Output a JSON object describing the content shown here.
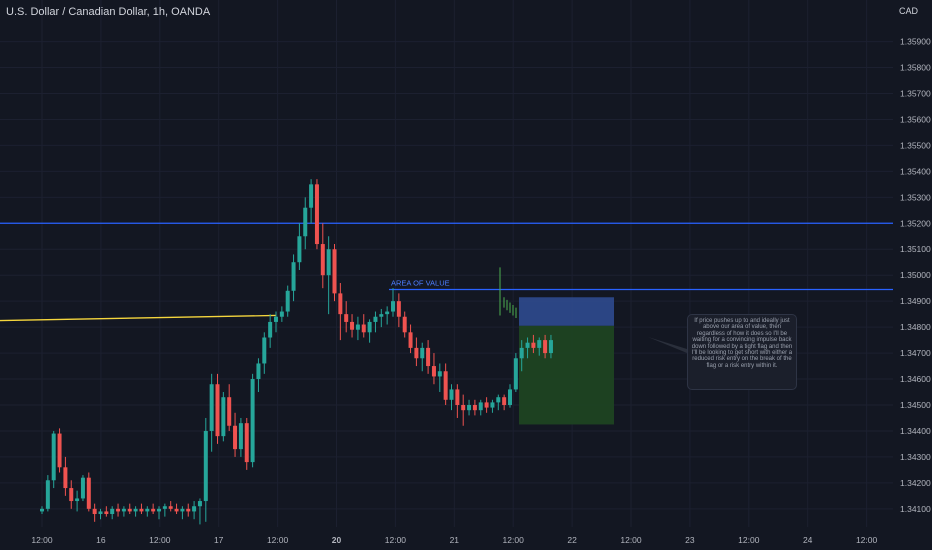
{
  "header": {
    "title": "U.S. Dollar / Canadian Dollar, 1h, OANDA",
    "currency": "CAD"
  },
  "annotation": {
    "area_label": "AREA OF VALUE",
    "note": "If price pushes up to and ideally just above our area of value, then regardless of how it does so I'll be waiting for a convincing impulse back down followed by a tight flag and then I'll be looking to get short with either a reduced risk entry on the break of the flag or a risk entry within it."
  },
  "colors": {
    "background": "#131722",
    "bull": "#26a69a",
    "bear": "#ef5350",
    "level_line": "#2962ff",
    "yellow_line": "#f5d63d",
    "stop_zone": "#2f4a8f",
    "target_zone": "#1d4322",
    "text": "#d1d4dc"
  },
  "chart_data": {
    "type": "candlestick",
    "symbol": "USDCAD",
    "timeframe": "1h",
    "ylim": [
      1.3403,
      1.3596
    ],
    "y_ticks": [
      "1.35900",
      "1.35800",
      "1.35700",
      "1.35600",
      "1.35500",
      "1.35400",
      "1.35300",
      "1.35200",
      "1.35100",
      "1.35000",
      "1.34900",
      "1.34800",
      "1.34700",
      "1.34600",
      "1.34500",
      "1.34400",
      "1.34300",
      "1.34200",
      "1.34100"
    ],
    "x_ticks": [
      "12:00",
      "16",
      "12:00",
      "17",
      "12:00",
      "20",
      "12:00",
      "21",
      "12:00",
      "22",
      "12:00",
      "23",
      "12:00",
      "24",
      "12:00"
    ],
    "horizontal_levels": [
      {
        "price": 1.352,
        "color": "level_line"
      },
      {
        "price": 1.34945,
        "color": "level_line",
        "label": "area_label",
        "starts_at_bar": 60
      }
    ],
    "yellow_line": {
      "from_bar": -1,
      "from_price": 1.34825,
      "to_bar": 40,
      "to_price": 1.34845
    },
    "candles": [
      {
        "o": 1.3409,
        "h": 1.3411,
        "l": 1.3408,
        "c": 1.341
      },
      {
        "o": 1.341,
        "h": 1.3423,
        "l": 1.3409,
        "c": 1.3421
      },
      {
        "o": 1.3421,
        "h": 1.344,
        "l": 1.3418,
        "c": 1.3439
      },
      {
        "o": 1.3439,
        "h": 1.3441,
        "l": 1.3424,
        "c": 1.3426
      },
      {
        "o": 1.3426,
        "h": 1.343,
        "l": 1.3415,
        "c": 1.3418
      },
      {
        "o": 1.3418,
        "h": 1.3421,
        "l": 1.341,
        "c": 1.3413
      },
      {
        "o": 1.3413,
        "h": 1.3417,
        "l": 1.3409,
        "c": 1.3414
      },
      {
        "o": 1.3414,
        "h": 1.3423,
        "l": 1.3413,
        "c": 1.3422
      },
      {
        "o": 1.3422,
        "h": 1.3424,
        "l": 1.3409,
        "c": 1.341
      },
      {
        "o": 1.341,
        "h": 1.3412,
        "l": 1.3405,
        "c": 1.3408
      },
      {
        "o": 1.3408,
        "h": 1.341,
        "l": 1.3406,
        "c": 1.3409
      },
      {
        "o": 1.3409,
        "h": 1.3411,
        "l": 1.3407,
        "c": 1.3408
      },
      {
        "o": 1.3408,
        "h": 1.3411,
        "l": 1.3406,
        "c": 1.341
      },
      {
        "o": 1.341,
        "h": 1.3412,
        "l": 1.3407,
        "c": 1.3409
      },
      {
        "o": 1.3409,
        "h": 1.3411,
        "l": 1.3407,
        "c": 1.341
      },
      {
        "o": 1.341,
        "h": 1.3412,
        "l": 1.3408,
        "c": 1.3409
      },
      {
        "o": 1.3409,
        "h": 1.3411,
        "l": 1.3407,
        "c": 1.341
      },
      {
        "o": 1.341,
        "h": 1.3412,
        "l": 1.3408,
        "c": 1.3409
      },
      {
        "o": 1.3409,
        "h": 1.3411,
        "l": 1.3407,
        "c": 1.341
      },
      {
        "o": 1.341,
        "h": 1.3412,
        "l": 1.3408,
        "c": 1.3409
      },
      {
        "o": 1.3409,
        "h": 1.3411,
        "l": 1.3406,
        "c": 1.341
      },
      {
        "o": 1.341,
        "h": 1.3412,
        "l": 1.3407,
        "c": 1.3411
      },
      {
        "o": 1.3411,
        "h": 1.3413,
        "l": 1.3409,
        "c": 1.341
      },
      {
        "o": 1.341,
        "h": 1.3412,
        "l": 1.3408,
        "c": 1.3409
      },
      {
        "o": 1.3409,
        "h": 1.3411,
        "l": 1.3406,
        "c": 1.341
      },
      {
        "o": 1.341,
        "h": 1.3412,
        "l": 1.3407,
        "c": 1.3409
      },
      {
        "o": 1.3409,
        "h": 1.3413,
        "l": 1.3406,
        "c": 1.3411
      },
      {
        "o": 1.3411,
        "h": 1.3414,
        "l": 1.3404,
        "c": 1.3413
      },
      {
        "o": 1.3413,
        "h": 1.3445,
        "l": 1.3405,
        "c": 1.344
      },
      {
        "o": 1.344,
        "h": 1.3462,
        "l": 1.3432,
        "c": 1.3458
      },
      {
        "o": 1.3458,
        "h": 1.3462,
        "l": 1.3435,
        "c": 1.3438
      },
      {
        "o": 1.3438,
        "h": 1.3455,
        "l": 1.3436,
        "c": 1.3453
      },
      {
        "o": 1.3453,
        "h": 1.3458,
        "l": 1.344,
        "c": 1.3442
      },
      {
        "o": 1.3442,
        "h": 1.3447,
        "l": 1.343,
        "c": 1.3433
      },
      {
        "o": 1.3433,
        "h": 1.3445,
        "l": 1.343,
        "c": 1.3443
      },
      {
        "o": 1.3443,
        "h": 1.3445,
        "l": 1.3425,
        "c": 1.3428
      },
      {
        "o": 1.3428,
        "h": 1.3462,
        "l": 1.3426,
        "c": 1.346
      },
      {
        "o": 1.346,
        "h": 1.3468,
        "l": 1.3455,
        "c": 1.3466
      },
      {
        "o": 1.3466,
        "h": 1.3478,
        "l": 1.3462,
        "c": 1.3476
      },
      {
        "o": 1.3476,
        "h": 1.3485,
        "l": 1.3472,
        "c": 1.3482
      },
      {
        "o": 1.3482,
        "h": 1.3486,
        "l": 1.3478,
        "c": 1.3484
      },
      {
        "o": 1.3484,
        "h": 1.3488,
        "l": 1.3482,
        "c": 1.3486
      },
      {
        "o": 1.3486,
        "h": 1.3496,
        "l": 1.3484,
        "c": 1.3494
      },
      {
        "o": 1.3494,
        "h": 1.3508,
        "l": 1.349,
        "c": 1.3505
      },
      {
        "o": 1.3505,
        "h": 1.352,
        "l": 1.3502,
        "c": 1.3515
      },
      {
        "o": 1.3515,
        "h": 1.353,
        "l": 1.351,
        "c": 1.3526
      },
      {
        "o": 1.3526,
        "h": 1.3537,
        "l": 1.352,
        "c": 1.3535
      },
      {
        "o": 1.3535,
        "h": 1.3537,
        "l": 1.351,
        "c": 1.3512
      },
      {
        "o": 1.3512,
        "h": 1.352,
        "l": 1.3495,
        "c": 1.35
      },
      {
        "o": 1.35,
        "h": 1.3515,
        "l": 1.3485,
        "c": 1.351
      },
      {
        "o": 1.351,
        "h": 1.3512,
        "l": 1.349,
        "c": 1.3493
      },
      {
        "o": 1.3493,
        "h": 1.3497,
        "l": 1.3475,
        "c": 1.3485
      },
      {
        "o": 1.3485,
        "h": 1.349,
        "l": 1.3478,
        "c": 1.3482
      },
      {
        "o": 1.3482,
        "h": 1.3485,
        "l": 1.3476,
        "c": 1.3479
      },
      {
        "o": 1.3479,
        "h": 1.3484,
        "l": 1.3475,
        "c": 1.3481
      },
      {
        "o": 1.3481,
        "h": 1.3485,
        "l": 1.3476,
        "c": 1.3478
      },
      {
        "o": 1.3478,
        "h": 1.3483,
        "l": 1.3474,
        "c": 1.3482
      },
      {
        "o": 1.3482,
        "h": 1.3486,
        "l": 1.3478,
        "c": 1.3484
      },
      {
        "o": 1.3484,
        "h": 1.3487,
        "l": 1.348,
        "c": 1.3485
      },
      {
        "o": 1.3485,
        "h": 1.3488,
        "l": 1.3481,
        "c": 1.3486
      },
      {
        "o": 1.3486,
        "h": 1.3495,
        "l": 1.3484,
        "c": 1.349
      },
      {
        "o": 1.349,
        "h": 1.3493,
        "l": 1.348,
        "c": 1.3484
      },
      {
        "o": 1.3484,
        "h": 1.3486,
        "l": 1.3476,
        "c": 1.3478
      },
      {
        "o": 1.3478,
        "h": 1.3481,
        "l": 1.347,
        "c": 1.3472
      },
      {
        "o": 1.3472,
        "h": 1.3476,
        "l": 1.3465,
        "c": 1.3468
      },
      {
        "o": 1.3468,
        "h": 1.3474,
        "l": 1.3463,
        "c": 1.3472
      },
      {
        "o": 1.3472,
        "h": 1.3475,
        "l": 1.3462,
        "c": 1.3465
      },
      {
        "o": 1.3465,
        "h": 1.347,
        "l": 1.3458,
        "c": 1.3461
      },
      {
        "o": 1.3461,
        "h": 1.3466,
        "l": 1.3455,
        "c": 1.3463
      },
      {
        "o": 1.3463,
        "h": 1.3466,
        "l": 1.345,
        "c": 1.3452
      },
      {
        "o": 1.3452,
        "h": 1.3458,
        "l": 1.3448,
        "c": 1.3456
      },
      {
        "o": 1.3456,
        "h": 1.3458,
        "l": 1.3445,
        "c": 1.345
      },
      {
        "o": 1.345,
        "h": 1.3454,
        "l": 1.3442,
        "c": 1.3448
      },
      {
        "o": 1.3448,
        "h": 1.3452,
        "l": 1.3446,
        "c": 1.345
      },
      {
        "o": 1.345,
        "h": 1.3452,
        "l": 1.3446,
        "c": 1.3448
      },
      {
        "o": 1.3448,
        "h": 1.3452,
        "l": 1.3446,
        "c": 1.3451
      },
      {
        "o": 1.3451,
        "h": 1.3453,
        "l": 1.3447,
        "c": 1.3449
      },
      {
        "o": 1.3449,
        "h": 1.3452,
        "l": 1.3447,
        "c": 1.3451
      },
      {
        "o": 1.3451,
        "h": 1.3454,
        "l": 1.3448,
        "c": 1.3453
      },
      {
        "o": 1.3453,
        "h": 1.3454,
        "l": 1.3448,
        "c": 1.345
      },
      {
        "o": 1.345,
        "h": 1.3458,
        "l": 1.3449,
        "c": 1.3456
      },
      {
        "o": 1.3456,
        "h": 1.347,
        "l": 1.3455,
        "c": 1.3468
      },
      {
        "o": 1.3468,
        "h": 1.3475,
        "l": 1.3463,
        "c": 1.3472
      },
      {
        "o": 1.3472,
        "h": 1.3476,
        "l": 1.3468,
        "c": 1.3474
      },
      {
        "o": 1.3474,
        "h": 1.3477,
        "l": 1.347,
        "c": 1.3472
      },
      {
        "o": 1.3472,
        "h": 1.3476,
        "l": 1.3469,
        "c": 1.3475
      },
      {
        "o": 1.3475,
        "h": 1.3477,
        "l": 1.3468,
        "c": 1.347
      },
      {
        "o": 1.347,
        "h": 1.3477,
        "l": 1.3468,
        "c": 1.3475
      }
    ],
    "projection": {
      "spike": {
        "price_high": 1.3503,
        "price_low": 1.34845
      },
      "ticks_prices": [
        1.34895,
        1.34885,
        1.34875,
        1.34865,
        1.34855
      ]
    },
    "stop_zone": {
      "from_price": 1.34915,
      "to_price": 1.34805
    },
    "target_zone": {
      "from_price": 1.34805,
      "to_price": 1.34425
    }
  }
}
